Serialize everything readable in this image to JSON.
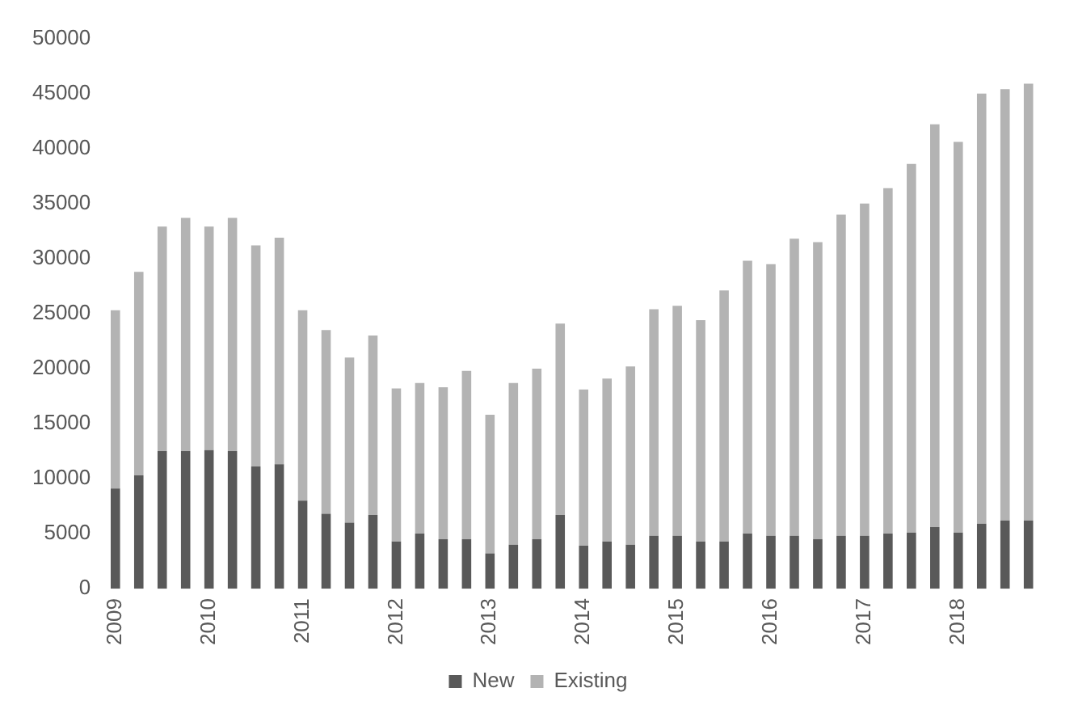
{
  "chart_data": {
    "type": "bar",
    "stacked": true,
    "legend": "bottom",
    "grid": false,
    "categories": [
      "2009",
      null,
      null,
      null,
      "2010",
      null,
      null,
      null,
      "2011",
      null,
      null,
      null,
      "2012",
      null,
      null,
      null,
      "2013",
      null,
      null,
      null,
      "2014",
      null,
      null,
      null,
      "2015",
      null,
      null,
      null,
      "2016",
      null,
      null,
      null,
      "2017",
      null,
      null,
      null,
      "2018",
      null,
      null,
      null
    ],
    "series": [
      {
        "name": "New",
        "color": "#595959",
        "values": [
          9100,
          10300,
          12500,
          12500,
          12600,
          12500,
          11100,
          11300,
          8000,
          6800,
          6000,
          6700,
          4300,
          5000,
          4500,
          4500,
          3200,
          4000,
          4500,
          6700,
          3900,
          4300,
          4000,
          4800,
          4800,
          4300,
          4300,
          5000,
          4800,
          4800,
          4500,
          4800,
          4800,
          5000,
          5100,
          5600,
          5100,
          5900,
          6200,
          6200
        ]
      },
      {
        "name": "Existing",
        "color": "#b3b3b3",
        "values": [
          16200,
          18500,
          20400,
          21200,
          20300,
          21200,
          20100,
          20600,
          17300,
          16700,
          15000,
          16300,
          13900,
          13700,
          13800,
          15300,
          12600,
          14700,
          15500,
          17400,
          14200,
          14800,
          16200,
          20600,
          20900,
          20100,
          22800,
          24800,
          24700,
          27000,
          27000,
          29200,
          30200,
          31400,
          33500,
          36600,
          35500,
          39100,
          39200,
          39700
        ]
      }
    ],
    "ylim": [
      0,
      50000
    ],
    "yticks": [
      0,
      5000,
      10000,
      15000,
      20000,
      25000,
      30000,
      35000,
      40000,
      45000,
      50000
    ]
  }
}
